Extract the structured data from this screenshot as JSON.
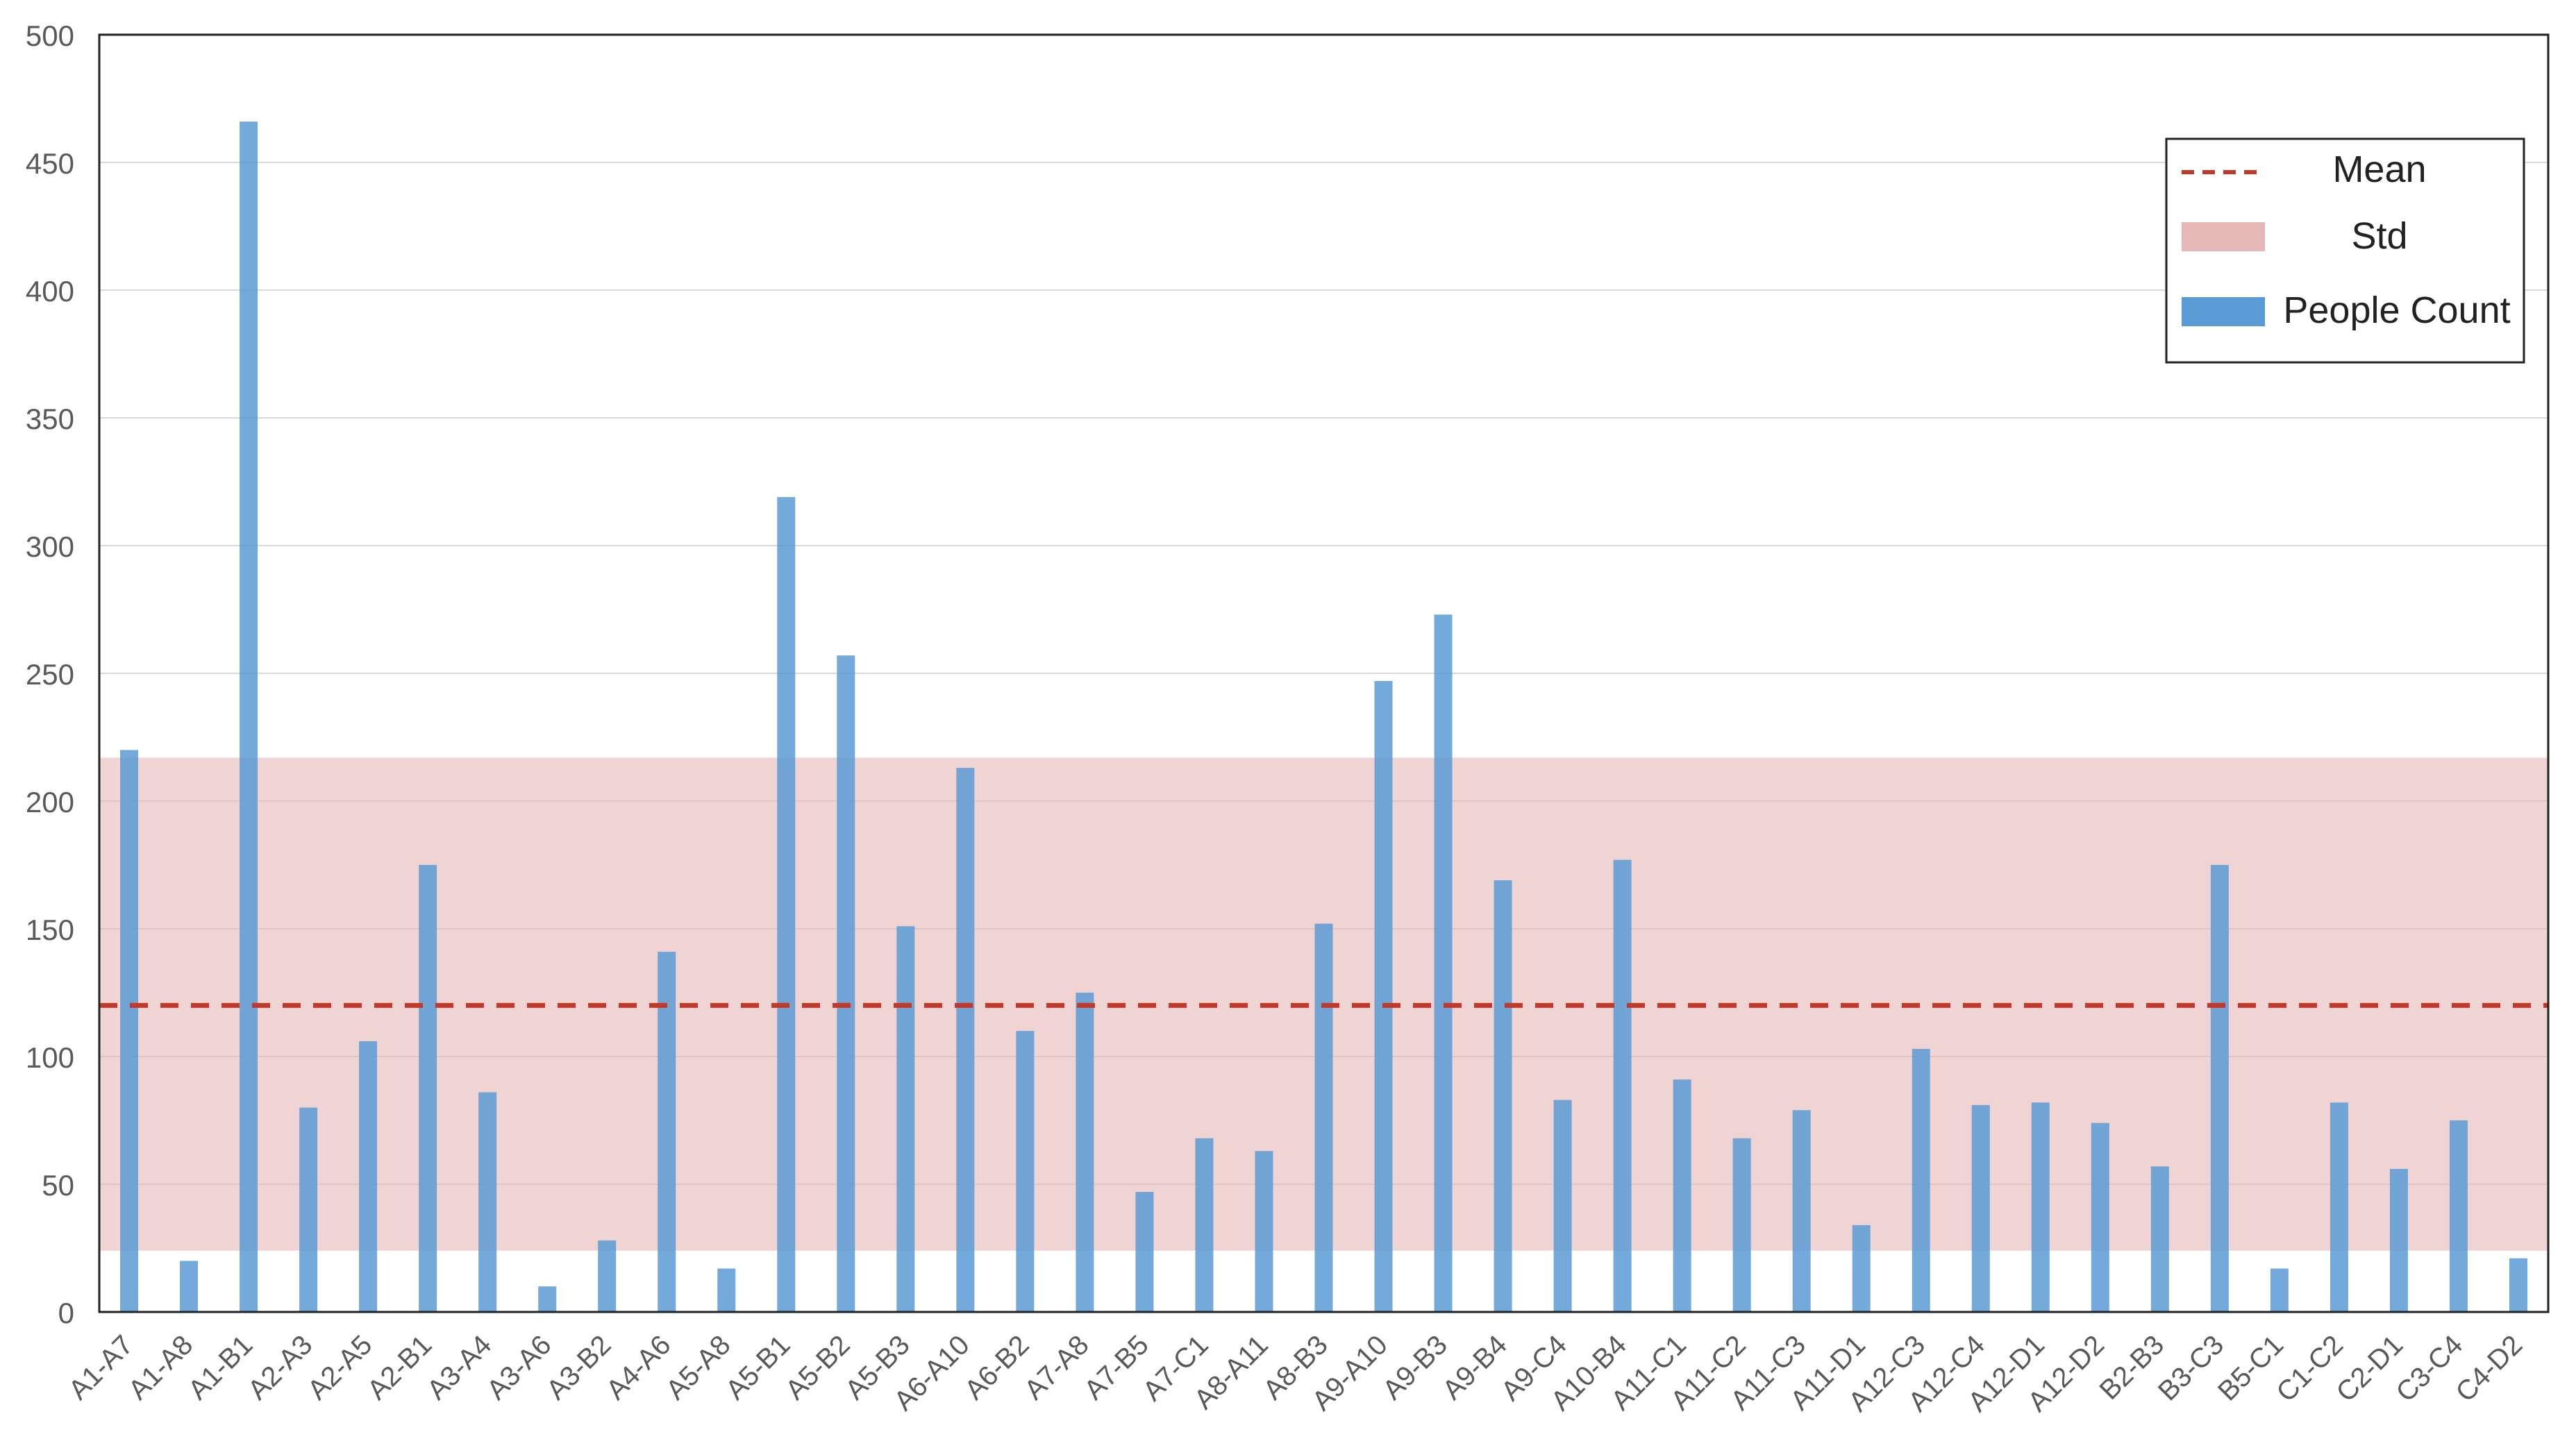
{
  "chart_data": {
    "type": "bar",
    "title": "",
    "xlabel": "",
    "ylabel": "",
    "ylim": [
      0,
      500
    ],
    "yticks": [
      0,
      50,
      100,
      150,
      200,
      250,
      300,
      350,
      400,
      450,
      500
    ],
    "grid": true,
    "legend_position": "top-right",
    "categories": [
      "A1-A7",
      "A1-A8",
      "A1-B1",
      "A2-A3",
      "A2-A5",
      "A2-B1",
      "A3-A4",
      "A3-A6",
      "A3-B2",
      "A4-A6",
      "A5-A8",
      "A5-B1",
      "A5-B2",
      "A5-B3",
      "A6-A10",
      "A6-B2",
      "A7-A8",
      "A7-B5",
      "A7-C1",
      "A8-A11",
      "A8-B3",
      "A9-A10",
      "A9-B3",
      "A9-B4",
      "A9-C4",
      "A10-B4",
      "A11-C1",
      "A11-C2",
      "A11-C3",
      "A11-D1",
      "A12-C3",
      "A12-C4",
      "A12-D1",
      "A12-D2",
      "B2-B3",
      "B3-C3",
      "B5-C1",
      "C1-C2",
      "C2-D1",
      "C3-C4",
      "C4-D2"
    ],
    "series": [
      {
        "name": "People Count",
        "color": "#5b9bd5",
        "values": [
          220,
          20,
          466,
          80,
          106,
          175,
          86,
          10,
          28,
          141,
          17,
          319,
          257,
          151,
          213,
          110,
          125,
          47,
          68,
          63,
          152,
          247,
          273,
          169,
          83,
          177,
          91,
          68,
          79,
          34,
          103,
          81,
          82,
          74,
          57,
          175,
          17,
          82,
          56,
          75,
          21
        ]
      }
    ],
    "mean": {
      "name": "Mean",
      "value": 120,
      "color": "#c0392b"
    },
    "std": {
      "name": "Std",
      "lower": 24,
      "upper": 217,
      "color": "#e6b8b8"
    }
  }
}
